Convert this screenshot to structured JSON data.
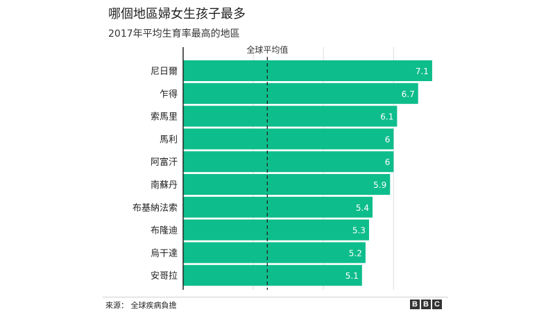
{
  "title": "哪個地區婦女生孩子最多",
  "subtitle": "2017年平均生育率最高的地區",
  "source": "來源： 全球疾病負擔",
  "logo": [
    "B",
    "B",
    "C"
  ],
  "colors": {
    "bar": "#0ebd8c",
    "grid": "#dcdcdc",
    "axis": "#222222",
    "average": "#222222"
  },
  "chart_data": {
    "type": "bar",
    "orientation": "horizontal",
    "categories": [
      "尼日爾",
      "乍得",
      "索馬里",
      "馬利",
      "阿富汗",
      "南蘇丹",
      "布基納法索",
      "布隆迪",
      "烏干達",
      "安哥拉"
    ],
    "values": [
      7.1,
      6.7,
      6.1,
      6,
      6,
      5.9,
      5.4,
      5.3,
      5.2,
      5.1
    ],
    "value_labels": [
      "7.1",
      "6.7",
      "6.1",
      "6",
      "6",
      "5.9",
      "5.4",
      "5.3",
      "5.2",
      "5.1"
    ],
    "xlim": [
      0,
      7.2
    ],
    "gridlines": [
      2,
      4,
      6
    ],
    "reference_line": {
      "label": "全球平均值",
      "value": 2.4
    },
    "grid": true
  }
}
